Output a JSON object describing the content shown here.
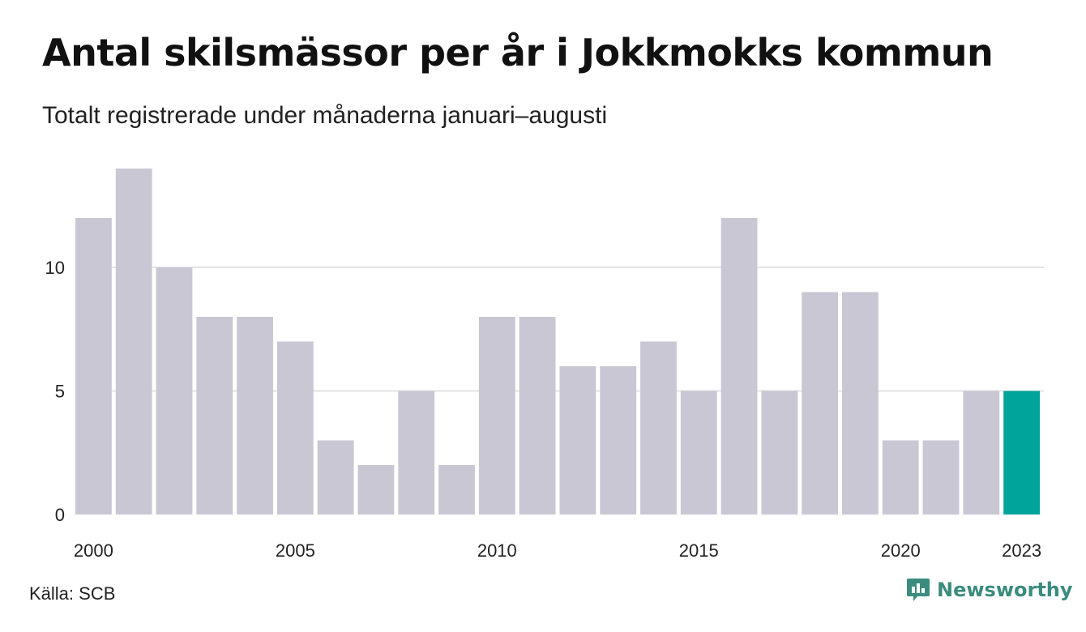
{
  "header": {
    "title": "Antal skilsmässor per år i Jokkmokks kommun",
    "subtitle": "Totalt registrerade under månaderna januari–augusti"
  },
  "footer": {
    "source": "Källa: SCB",
    "brand": "Newsworthy",
    "brand_icon": "chart-bubble-icon"
  },
  "colors": {
    "bar": "#c8c7d3",
    "highlight": "#00a49a",
    "grid": "#e3e3e3",
    "brand": "#3a8c7e"
  },
  "chart_data": {
    "type": "bar",
    "title": "Antal skilsmässor per år i Jokkmokks kommun",
    "subtitle": "Totalt registrerade under månaderna januari–augusti",
    "categories": [
      2000,
      2001,
      2002,
      2003,
      2004,
      2005,
      2006,
      2007,
      2008,
      2009,
      2010,
      2011,
      2012,
      2013,
      2014,
      2015,
      2016,
      2017,
      2018,
      2019,
      2020,
      2021,
      2022,
      2023
    ],
    "values": [
      12,
      14,
      10,
      8,
      8,
      7,
      3,
      2,
      5,
      2,
      8,
      8,
      6,
      6,
      7,
      5,
      12,
      5,
      9,
      9,
      3,
      3,
      5,
      5
    ],
    "highlight_category": 2023,
    "x_tick_labels": [
      "2000",
      "2005",
      "2010",
      "2015",
      "2020",
      "2023"
    ],
    "y_ticks": [
      0,
      5,
      10
    ],
    "ylim": [
      0,
      14
    ],
    "xlabel": "",
    "ylabel": "",
    "grid": true
  }
}
